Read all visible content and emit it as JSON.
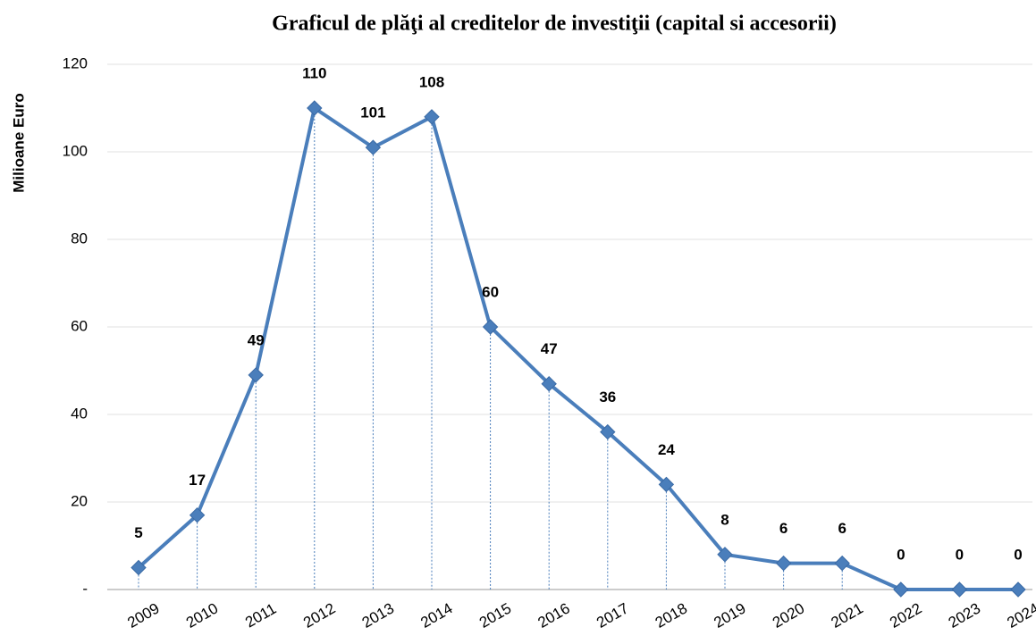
{
  "chart_data": {
    "type": "line",
    "title": "Graficul de plăţi al creditelor de investiţii (capital si accesorii)",
    "y_label": "Milioane Euro",
    "categories": [
      "2009",
      "2010",
      "2011",
      "2012",
      "2013",
      "2014",
      "2015",
      "2016",
      "2017",
      "2018",
      "2019",
      "2020",
      "2021",
      "2022",
      "2023",
      "2024"
    ],
    "values": [
      5,
      17,
      49,
      110,
      101,
      108,
      60,
      47,
      36,
      24,
      8,
      6,
      6,
      0,
      0,
      0
    ],
    "color": "#4a7ebb",
    "ylim": [
      0,
      120
    ],
    "yticks": [
      {
        "value": 0,
        "label": "-"
      },
      20,
      40,
      60,
      80,
      100,
      120
    ],
    "grid": true
  }
}
